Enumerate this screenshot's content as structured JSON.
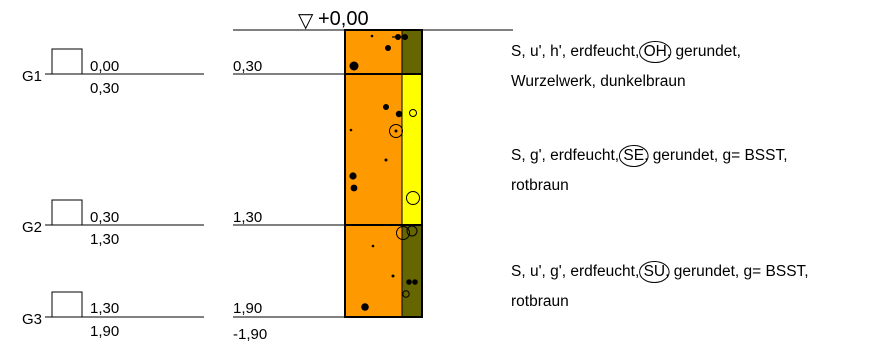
{
  "datum": {
    "marker": "▽",
    "label": "+0,00"
  },
  "samples": [
    {
      "name": "G1",
      "top": "0,00",
      "bottom": "0,30"
    },
    {
      "name": "G2",
      "top": "0,30",
      "bottom": "1,30"
    },
    {
      "name": "G3",
      "top": "1,30",
      "bottom": "1,90"
    }
  ],
  "depth_marks": [
    "0,30",
    "1,30",
    "1,90"
  ],
  "final_depth": "-1,90",
  "layers": [
    {
      "code": "OH",
      "line1_before": "S, u', h', erdfeucht, ",
      "line1_after": ", gerundet,",
      "line2": "Wurzelwerk, dunkelbraun",
      "colors": {
        "main": "#ff9900",
        "strip": "#666600"
      }
    },
    {
      "code": "SE",
      "line1_before": "S, g', erdfeucht, ",
      "line1_after": ", gerundet, g= BSST,",
      "line2": "rotbraun",
      "colors": {
        "main": "#ff9900",
        "strip": "#ffff00"
      }
    },
    {
      "code": "SU",
      "line1_before": "S, u', g', erdfeucht, ",
      "line1_after": ", gerundet, g= BSST,",
      "line2": "rotbraun",
      "colors": {
        "main": "#ff9900",
        "strip": "#666600"
      }
    }
  ]
}
